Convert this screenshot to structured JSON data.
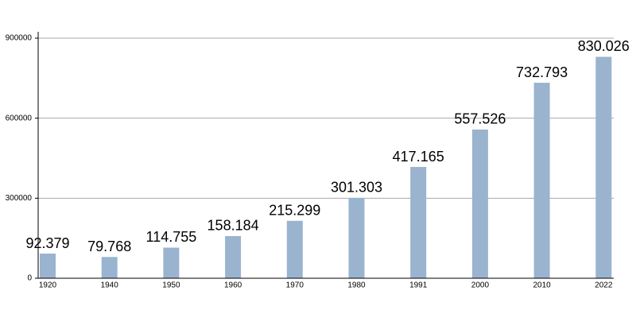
{
  "chart_data": {
    "type": "bar",
    "categories": [
      "1920",
      "1940",
      "1950",
      "1960",
      "1970",
      "1980",
      "1991",
      "2000",
      "2010",
      "2022"
    ],
    "values": [
      92379,
      79768,
      114755,
      158184,
      215299,
      301303,
      417165,
      557526,
      732793,
      830026
    ],
    "value_labels": [
      "92.379",
      "79.768",
      "114.755",
      "158.184",
      "215.299",
      "301.303",
      "417.165",
      "557.526",
      "732.793",
      "830.026"
    ],
    "color": "#9ab3cf",
    "ylim": [
      0,
      900000
    ],
    "yticks": [
      0,
      300000,
      600000,
      900000
    ],
    "grid": true
  }
}
